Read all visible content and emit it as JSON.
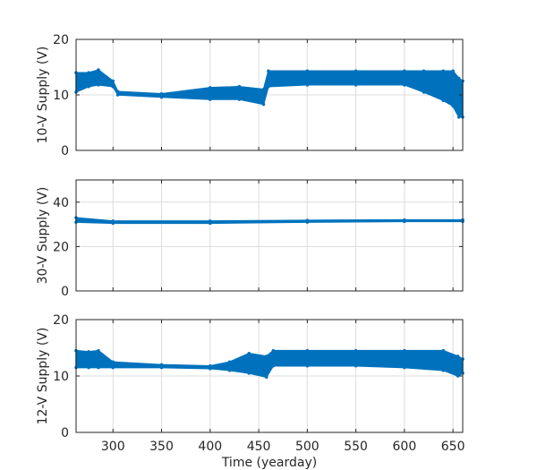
{
  "chart_data": [
    {
      "type": "scatter",
      "ylabel": "10-V Supply (V)",
      "xlabel": "",
      "xlim": [
        262,
        660
      ],
      "ylim": [
        0,
        20
      ],
      "yticks": [
        0,
        10,
        20
      ],
      "xticks": [
        300,
        350,
        400,
        450,
        500,
        550,
        600,
        650
      ],
      "xtick_labels": [],
      "grid": true,
      "series": [
        {
          "name": "10-V Supply",
          "band": [
            [
              262,
              10.5,
              14.0
            ],
            [
              275,
              11.5,
              14.0
            ],
            [
              285,
              11.8,
              14.5
            ],
            [
              300,
              11.5,
              12.5
            ],
            [
              305,
              10.0,
              10.6
            ],
            [
              350,
              9.6,
              10.2
            ],
            [
              400,
              9.2,
              11.3
            ],
            [
              430,
              9.2,
              11.5
            ],
            [
              455,
              8.3,
              11.0
            ],
            [
              460,
              11.5,
              14.3
            ],
            [
              500,
              11.8,
              14.3
            ],
            [
              550,
              11.8,
              14.3
            ],
            [
              600,
              11.8,
              14.3
            ],
            [
              620,
              10.5,
              14.3
            ],
            [
              640,
              9.0,
              14.3
            ],
            [
              650,
              8.0,
              14.3
            ],
            [
              656,
              6.0,
              13.0
            ],
            [
              660,
              6.0,
              12.5
            ]
          ]
        }
      ]
    },
    {
      "type": "scatter",
      "ylabel": "30-V Supply (V)",
      "xlabel": "",
      "xlim": [
        262,
        660
      ],
      "ylim": [
        0,
        50
      ],
      "yticks": [
        0,
        20,
        40
      ],
      "xticks": [
        300,
        350,
        400,
        450,
        500,
        550,
        600,
        650
      ],
      "xtick_labels": [],
      "grid": true,
      "series": [
        {
          "name": "30-V Supply",
          "band": [
            [
              262,
              31.0,
              33.0
            ],
            [
              300,
              30.5,
              31.5
            ],
            [
              400,
              30.5,
              31.5
            ],
            [
              500,
              31.0,
              31.8
            ],
            [
              600,
              31.3,
              32.0
            ],
            [
              660,
              31.3,
              32.0
            ]
          ]
        }
      ]
    },
    {
      "type": "scatter",
      "ylabel": "12-V Supply (V)",
      "xlabel": "Time (yearday)",
      "xlim": [
        262,
        660
      ],
      "ylim": [
        0,
        20
      ],
      "yticks": [
        0,
        10,
        20
      ],
      "xticks": [
        300,
        350,
        400,
        450,
        500,
        550,
        600,
        650
      ],
      "xtick_labels": [
        "300",
        "350",
        "400",
        "450",
        "500",
        "550",
        "600",
        "650"
      ],
      "grid": true,
      "series": [
        {
          "name": "12-V Supply",
          "band": [
            [
              262,
              11.5,
              14.5
            ],
            [
              275,
              11.5,
              14.3
            ],
            [
              285,
              11.5,
              14.5
            ],
            [
              300,
              11.5,
              12.5
            ],
            [
              350,
              11.5,
              12.0
            ],
            [
              400,
              11.3,
              11.8
            ],
            [
              420,
              11.0,
              12.5
            ],
            [
              440,
              10.5,
              14.0
            ],
            [
              458,
              9.8,
              13.5
            ],
            [
              465,
              11.8,
              14.5
            ],
            [
              500,
              11.8,
              14.5
            ],
            [
              550,
              11.8,
              14.5
            ],
            [
              600,
              11.5,
              14.5
            ],
            [
              640,
              11.0,
              14.5
            ],
            [
              655,
              10.0,
              13.5
            ],
            [
              660,
              10.5,
              13.0
            ]
          ]
        }
      ]
    }
  ],
  "colors": {
    "series": "#0072BD",
    "axis": "#262626",
    "grid": "#dcdcdc"
  }
}
